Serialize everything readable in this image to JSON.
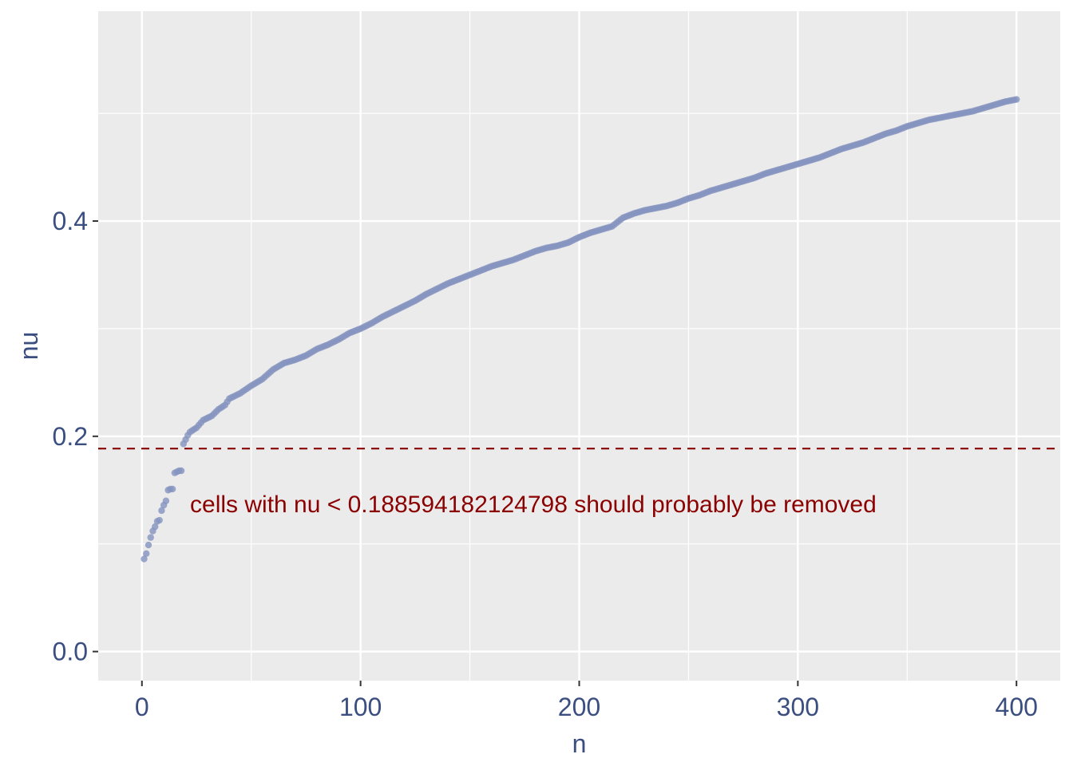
{
  "colors": {
    "panel_background": "#ebebeb",
    "grid": "#ffffff",
    "points": "#8593bf",
    "threshold": "#8b0000",
    "axis_text": "#3b4e80"
  },
  "chart_data": {
    "type": "scatter",
    "xlabel": "n",
    "ylabel": "nu",
    "xlim": [
      -20,
      420
    ],
    "ylim": [
      -0.027,
      0.595
    ],
    "x_ticks": [
      0,
      100,
      200,
      300,
      400
    ],
    "x_tick_labels": [
      "0",
      "100",
      "200",
      "300",
      "400"
    ],
    "y_ticks": [
      0.0,
      0.2,
      0.4
    ],
    "y_tick_labels": [
      "0.0",
      "0.2",
      "0.4"
    ],
    "grid": true,
    "threshold": 0.188594182124798,
    "annotation": "cells with nu < 0.188594182124798 should probably be removed",
    "curve_points": [
      {
        "x": 1,
        "y": 0.086
      },
      {
        "x": 2,
        "y": 0.091
      },
      {
        "x": 3,
        "y": 0.099
      },
      {
        "x": 4,
        "y": 0.106
      },
      {
        "x": 5,
        "y": 0.112
      },
      {
        "x": 6,
        "y": 0.116
      },
      {
        "x": 7,
        "y": 0.121
      },
      {
        "x": 8,
        "y": 0.122
      },
      {
        "x": 9,
        "y": 0.131
      },
      {
        "x": 10,
        "y": 0.136
      },
      {
        "x": 11,
        "y": 0.14
      },
      {
        "x": 12,
        "y": 0.15
      },
      {
        "x": 13,
        "y": 0.151
      },
      {
        "x": 14,
        "y": 0.151
      },
      {
        "x": 15,
        "y": 0.166
      },
      {
        "x": 16,
        "y": 0.167
      },
      {
        "x": 17,
        "y": 0.168
      },
      {
        "x": 18,
        "y": 0.168
      },
      {
        "x": 19,
        "y": 0.193
      },
      {
        "x": 20,
        "y": 0.197
      },
      {
        "x": 21,
        "y": 0.201
      },
      {
        "x": 22,
        "y": 0.204
      },
      {
        "x": 25,
        "y": 0.208
      },
      {
        "x": 28,
        "y": 0.215
      },
      {
        "x": 32,
        "y": 0.219
      },
      {
        "x": 35,
        "y": 0.225
      },
      {
        "x": 38,
        "y": 0.229
      },
      {
        "x": 40,
        "y": 0.235
      },
      {
        "x": 45,
        "y": 0.24
      },
      {
        "x": 50,
        "y": 0.247
      },
      {
        "x": 55,
        "y": 0.253
      },
      {
        "x": 60,
        "y": 0.262
      },
      {
        "x": 65,
        "y": 0.268
      },
      {
        "x": 70,
        "y": 0.271
      },
      {
        "x": 75,
        "y": 0.275
      },
      {
        "x": 80,
        "y": 0.281
      },
      {
        "x": 85,
        "y": 0.285
      },
      {
        "x": 90,
        "y": 0.29
      },
      {
        "x": 95,
        "y": 0.296
      },
      {
        "x": 100,
        "y": 0.3
      },
      {
        "x": 105,
        "y": 0.305
      },
      {
        "x": 110,
        "y": 0.311
      },
      {
        "x": 115,
        "y": 0.316
      },
      {
        "x": 120,
        "y": 0.321
      },
      {
        "x": 125,
        "y": 0.326
      },
      {
        "x": 130,
        "y": 0.332
      },
      {
        "x": 135,
        "y": 0.337
      },
      {
        "x": 140,
        "y": 0.342
      },
      {
        "x": 145,
        "y": 0.346
      },
      {
        "x": 150,
        "y": 0.35
      },
      {
        "x": 155,
        "y": 0.354
      },
      {
        "x": 160,
        "y": 0.358
      },
      {
        "x": 165,
        "y": 0.361
      },
      {
        "x": 170,
        "y": 0.364
      },
      {
        "x": 175,
        "y": 0.368
      },
      {
        "x": 180,
        "y": 0.372
      },
      {
        "x": 185,
        "y": 0.375
      },
      {
        "x": 190,
        "y": 0.377
      },
      {
        "x": 195,
        "y": 0.38
      },
      {
        "x": 200,
        "y": 0.385
      },
      {
        "x": 205,
        "y": 0.389
      },
      {
        "x": 210,
        "y": 0.392
      },
      {
        "x": 215,
        "y": 0.395
      },
      {
        "x": 220,
        "y": 0.403
      },
      {
        "x": 225,
        "y": 0.407
      },
      {
        "x": 230,
        "y": 0.41
      },
      {
        "x": 235,
        "y": 0.412
      },
      {
        "x": 240,
        "y": 0.414
      },
      {
        "x": 245,
        "y": 0.417
      },
      {
        "x": 250,
        "y": 0.421
      },
      {
        "x": 255,
        "y": 0.424
      },
      {
        "x": 260,
        "y": 0.428
      },
      {
        "x": 265,
        "y": 0.431
      },
      {
        "x": 270,
        "y": 0.434
      },
      {
        "x": 275,
        "y": 0.437
      },
      {
        "x": 280,
        "y": 0.44
      },
      {
        "x": 285,
        "y": 0.444
      },
      {
        "x": 290,
        "y": 0.447
      },
      {
        "x": 295,
        "y": 0.45
      },
      {
        "x": 300,
        "y": 0.453
      },
      {
        "x": 305,
        "y": 0.456
      },
      {
        "x": 310,
        "y": 0.459
      },
      {
        "x": 315,
        "y": 0.463
      },
      {
        "x": 320,
        "y": 0.467
      },
      {
        "x": 325,
        "y": 0.47
      },
      {
        "x": 330,
        "y": 0.473
      },
      {
        "x": 335,
        "y": 0.477
      },
      {
        "x": 340,
        "y": 0.481
      },
      {
        "x": 345,
        "y": 0.484
      },
      {
        "x": 350,
        "y": 0.488
      },
      {
        "x": 355,
        "y": 0.491
      },
      {
        "x": 360,
        "y": 0.494
      },
      {
        "x": 365,
        "y": 0.496
      },
      {
        "x": 370,
        "y": 0.498
      },
      {
        "x": 375,
        "y": 0.5
      },
      {
        "x": 380,
        "y": 0.502
      },
      {
        "x": 385,
        "y": 0.505
      },
      {
        "x": 390,
        "y": 0.508
      },
      {
        "x": 395,
        "y": 0.511
      },
      {
        "x": 400,
        "y": 0.513
      }
    ]
  }
}
